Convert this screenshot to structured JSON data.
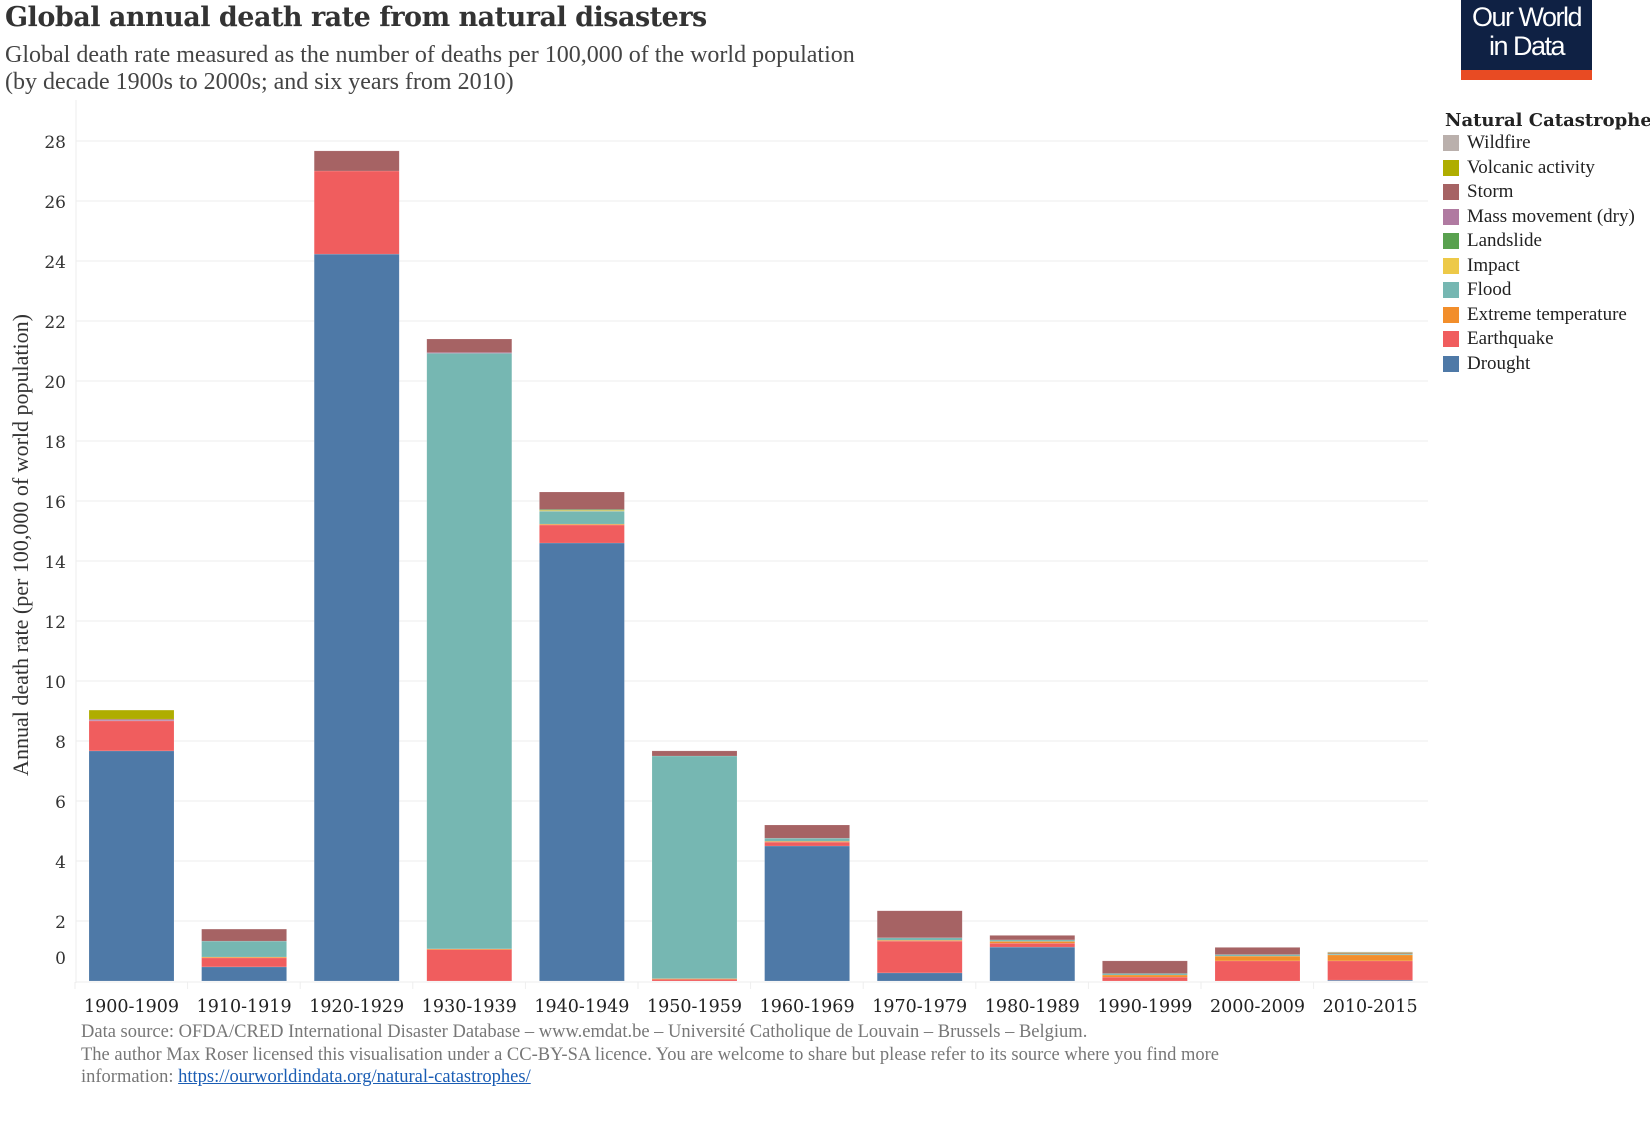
{
  "header": {
    "title": "Global annual death rate from natural disasters",
    "subtitle_line1": "Global death rate measured as the number of deaths per 100,000 of the world population",
    "subtitle_line2": "(by decade 1900s to 2000s; and six years from 2010)"
  },
  "logo": {
    "line1": "Our World",
    "line2": "in Data",
    "bg_color": "#0f2144",
    "accent_color": "#e84b23"
  },
  "footer": {
    "line1": "Data source: OFDA/CRED International Disaster Database – www.emdat.be – Université Catholique de Louvain – Brussels – Belgium.",
    "line2": "The author Max Roser licensed this visualisation under a CC-BY-SA licence. You are welcome to share but please refer to its source where you find more",
    "line3_prefix": "information: ",
    "link_text": "https://ourworldindata.org/natural-catastrophes/"
  },
  "chart_data": {
    "type": "bar",
    "stacked": true,
    "title": "Global annual death rate from natural disasters",
    "xlabel": "",
    "ylabel": "Annual death rate (per 100,000 of world population)",
    "ylim": [
      0,
      28
    ],
    "yticks": [
      0,
      2,
      4,
      6,
      8,
      10,
      12,
      14,
      16,
      18,
      20,
      22,
      24,
      26,
      28
    ],
    "grid": true,
    "legend_title": "Natural Catastrophe",
    "legend_position": "right",
    "categories": [
      "1900-1909",
      "1910-1919",
      "1920-1929",
      "1930-1939",
      "1940-1949",
      "1950-1959",
      "1960-1969",
      "1970-1979",
      "1980-1989",
      "1990-1999",
      "2000-2009",
      "2010-2015"
    ],
    "series": [
      {
        "name": "Drought",
        "color": "#4e79a7",
        "values": [
          7.67,
          0.47,
          24.23,
          0.0,
          14.6,
          0.0,
          4.5,
          0.27,
          1.13,
          0.0,
          0.0,
          0.03
        ]
      },
      {
        "name": "Earthquake",
        "color": "#f05d5e",
        "values": [
          1.0,
          0.3,
          2.77,
          1.05,
          0.6,
          0.06,
          0.13,
          1.06,
          0.13,
          0.13,
          0.67,
          0.64
        ]
      },
      {
        "name": "Extreme temperature",
        "color": "#f28e2b",
        "values": [
          0.0,
          0.03,
          0.0,
          0.02,
          0.03,
          0.02,
          0.03,
          0.03,
          0.06,
          0.07,
          0.16,
          0.2
        ]
      },
      {
        "name": "Flood",
        "color": "#76b7b2",
        "values": [
          0.0,
          0.53,
          0.0,
          19.86,
          0.43,
          7.42,
          0.1,
          0.08,
          0.05,
          0.05,
          0.05,
          0.03
        ]
      },
      {
        "name": "Impact",
        "color": "#edc948",
        "values": [
          0.0,
          0.0,
          0.0,
          0.0,
          0.03,
          0.0,
          0.0,
          0.0,
          0.0,
          0.0,
          0.0,
          0.0
        ]
      },
      {
        "name": "Landslide",
        "color": "#59a14f",
        "values": [
          0.0,
          0.0,
          0.0,
          0.0,
          0.03,
          0.0,
          0.0,
          0.0,
          0.0,
          0.0,
          0.0,
          0.0
        ]
      },
      {
        "name": "Mass movement (dry)",
        "color": "#b07aa1",
        "values": [
          0.03,
          0.0,
          0.0,
          0.02,
          0.0,
          0.0,
          0.0,
          0.0,
          0.0,
          0.0,
          0.0,
          0.0
        ]
      },
      {
        "name": "Storm",
        "color": "#a66364",
        "values": [
          0.03,
          0.4,
          0.67,
          0.45,
          0.58,
          0.17,
          0.44,
          0.9,
          0.15,
          0.42,
          0.24,
          0.03
        ]
      },
      {
        "name": "Volcanic activity",
        "color": "#afad00",
        "values": [
          0.3,
          0.0,
          0.0,
          0.0,
          0.0,
          0.0,
          0.0,
          0.0,
          0.0,
          0.0,
          0.0,
          0.02
        ]
      },
      {
        "name": "Wildfire",
        "color": "#bab0ac",
        "values": [
          0.0,
          0.0,
          0.0,
          0.0,
          0.0,
          0.0,
          0.0,
          0.0,
          0.0,
          0.0,
          0.0,
          0.02
        ]
      }
    ],
    "legend_order": [
      "Wildfire",
      "Volcanic activity",
      "Storm",
      "Mass movement (dry)",
      "Landslide",
      "Impact",
      "Flood",
      "Extreme temperature",
      "Earthquake",
      "Drought"
    ]
  }
}
